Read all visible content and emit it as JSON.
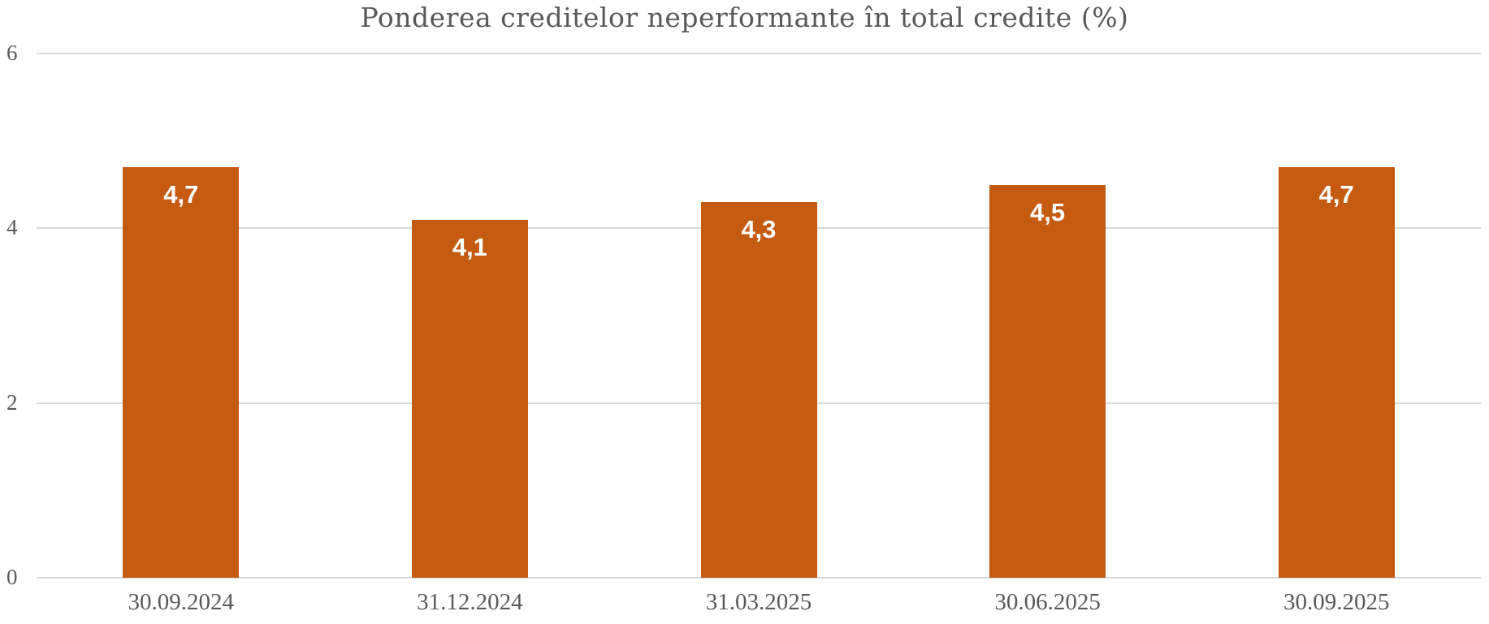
{
  "chart_data": {
    "type": "bar",
    "title": "Ponderea creditelor neperformante în total credite (%)",
    "categories": [
      "30.09.2024",
      "31.12.2024",
      "31.03.2025",
      "30.06.2025",
      "30.09.2025"
    ],
    "values": [
      4.7,
      4.1,
      4.3,
      4.5,
      4.7
    ],
    "value_labels": [
      "4,7",
      "4,1",
      "4,3",
      "4,5",
      "4,7"
    ],
    "xlabel": "",
    "ylabel": "",
    "ylim": [
      0,
      6
    ],
    "yticks": [
      0,
      2,
      4,
      6
    ],
    "grid": true,
    "legend": "none",
    "colors": {
      "bar": "#C55A11",
      "bar_value_label": "#FFFFFF",
      "title_text": "#595959",
      "axis_text": "#595959",
      "gridline": "#D9D9D9",
      "background": "#FFFFFF"
    }
  }
}
